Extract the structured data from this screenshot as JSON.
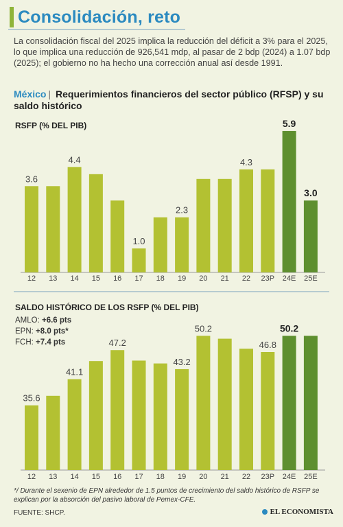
{
  "header": {
    "title": "Consolidación, reto",
    "intro": "La consolidación fiscal del 2025 implica la reducción del déficit a 3% para el 2025, lo que implica una reducción de 926,541 mdp, al pasar de 2 bdp (2024) a 1.07 bdp (2025); el gobierno no ha hecho una corrección anual así desde 1991.",
    "country": "México",
    "section_title": "Requerimientos financieros del sector público (RFSP) y su saldo histórico"
  },
  "colors": {
    "light_bar": "#b3c132",
    "dark_bar": "#5e8f2f",
    "title_blue": "#2b8ac0"
  },
  "chart_data": [
    {
      "type": "bar",
      "title": "RSFP (% DEL PIB)",
      "categories": [
        "12",
        "13",
        "14",
        "15",
        "16",
        "17",
        "18",
        "19",
        "20",
        "21",
        "22",
        "23P",
        "24E",
        "25E"
      ],
      "values": [
        3.6,
        3.6,
        4.4,
        4.1,
        3.0,
        1.0,
        2.3,
        2.3,
        3.9,
        3.9,
        4.3,
        4.3,
        5.9,
        3.0
      ],
      "labels": [
        "3.6",
        "",
        "4.4",
        "",
        "",
        "1.0",
        "",
        "2.3",
        "",
        "",
        "4.3",
        "",
        "5.9",
        "3.0"
      ],
      "estimate_categories": [
        "24E",
        "25E"
      ],
      "ylim": [
        0,
        6.5
      ]
    },
    {
      "type": "bar",
      "title": "SALDO HISTÓRICO DE LOS RSFP (% DEL PIB)",
      "categories": [
        "12",
        "13",
        "14",
        "15",
        "16",
        "17",
        "18",
        "19",
        "20",
        "21",
        "22",
        "23P",
        "24E",
        "25E"
      ],
      "values": [
        35.6,
        37.6,
        41.1,
        44.9,
        47.2,
        45.0,
        44.4,
        43.2,
        50.2,
        49.6,
        47.5,
        46.8,
        50.2,
        50.2
      ],
      "labels": [
        "35.6",
        "",
        "41.1",
        "",
        "47.2",
        "",
        "",
        "43.2",
        "50.2",
        "",
        "",
        "46.8",
        "50.2",
        ""
      ],
      "estimate_categories": [
        "24E",
        "25E"
      ],
      "ylim": [
        22,
        53
      ],
      "annotations": [
        {
          "label": "AMLO:",
          "value": "+6.6 pts"
        },
        {
          "label": "EPN:",
          "value": "+8.0 pts*"
        },
        {
          "label": "FCH:",
          "value": "+7.4 pts"
        }
      ]
    }
  ],
  "footer": {
    "footnote": "*/ Durante el sexenio de EPN alrededor de 1.5 puntos de crecimiento del saldo histórico de RSFP se explican por la absorción del pasivo laboral de Pemex-CFE.",
    "source": "FUENTE: SHCP.",
    "brand": "EL ECONOMISTA"
  }
}
